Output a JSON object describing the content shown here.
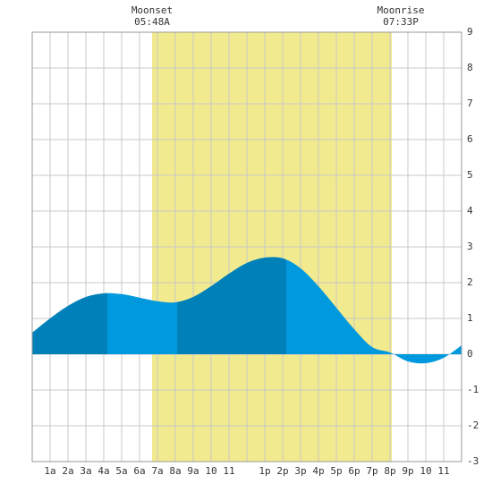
{
  "chart_data": {
    "type": "area",
    "annotations": [
      {
        "label": "Moonset",
        "time": "05:48A"
      },
      {
        "label": "Moonrise",
        "time": "07:33P"
      }
    ],
    "x": [
      0,
      1,
      2,
      3,
      4,
      5,
      6,
      7,
      8,
      9,
      10,
      11,
      12,
      13,
      14,
      15,
      16,
      17,
      18,
      19,
      20,
      21,
      22,
      23,
      24
    ],
    "values": [
      0.6,
      1.0,
      1.35,
      1.6,
      1.7,
      1.68,
      1.58,
      1.48,
      1.45,
      1.6,
      1.9,
      2.25,
      2.55,
      2.7,
      2.68,
      2.4,
      1.9,
      1.3,
      0.7,
      0.2,
      0.05,
      -0.2,
      -0.25,
      -0.1,
      0.25
    ],
    "color": "#0099dd",
    "dark_color": "#0080b8",
    "dark_segments": [
      [
        0,
        4.2
      ],
      [
        8.1,
        14.2
      ]
    ],
    "daylight": [
      6.7,
      20.1
    ],
    "daylight_color": "#f2ea8e",
    "xlim": [
      0,
      24
    ],
    "xticks": [
      {
        "value": 1,
        "label": "1a"
      },
      {
        "value": 2,
        "label": "2a"
      },
      {
        "value": 3,
        "label": "3a"
      },
      {
        "value": 4,
        "label": "4a"
      },
      {
        "value": 5,
        "label": "5a"
      },
      {
        "value": 6,
        "label": "6a"
      },
      {
        "value": 7,
        "label": "7a"
      },
      {
        "value": 8,
        "label": "8a"
      },
      {
        "value": 9,
        "label": "9a"
      },
      10,
      11,
      {
        "value": 12,
        "label": null
      },
      {
        "value": 13,
        "label": "1p"
      },
      {
        "value": 14,
        "label": "2p"
      },
      {
        "value": 15,
        "label": "3p"
      },
      {
        "value": 16,
        "label": "4p"
      },
      {
        "value": 17,
        "label": "5p"
      },
      {
        "value": 18,
        "label": "6p"
      },
      {
        "value": 19,
        "label": "7p"
      },
      {
        "value": 20,
        "label": "8p"
      },
      {
        "value": 21,
        "label": "9p"
      },
      {
        "value": 22,
        "label": "10"
      },
      {
        "value": 23,
        "label": "11"
      }
    ],
    "ylim": [
      -3,
      9
    ],
    "yticks": [
      -3,
      -2,
      -1,
      0,
      1,
      2,
      3,
      4,
      5,
      6,
      7,
      8,
      9
    ],
    "grid": true
  }
}
